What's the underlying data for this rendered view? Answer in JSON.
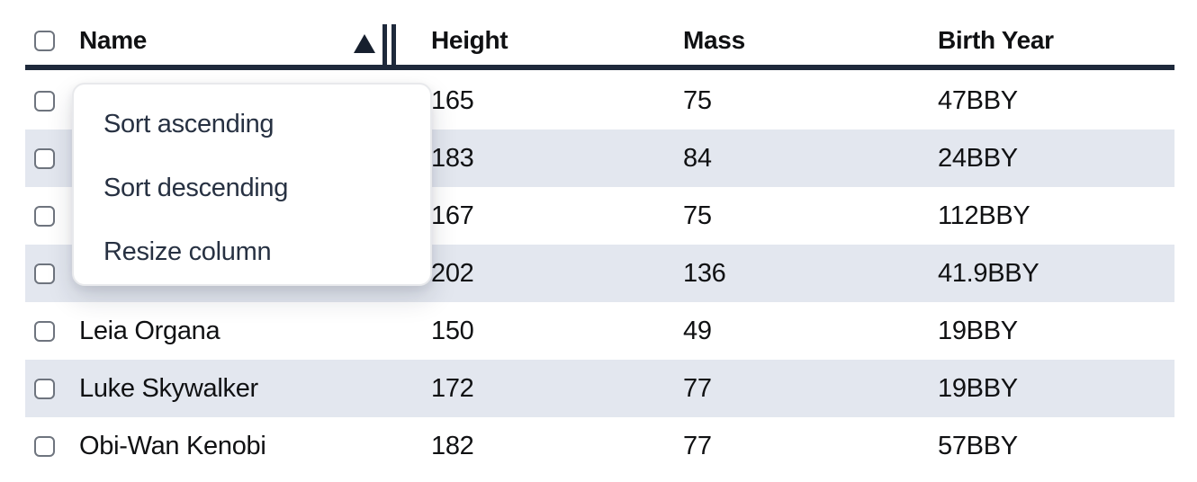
{
  "table": {
    "columns": [
      {
        "label": "Name",
        "sort_state": "ascending",
        "has_resize_handle": true
      },
      {
        "label": "Height"
      },
      {
        "label": "Mass"
      },
      {
        "label": "Birth Year"
      }
    ],
    "rows": [
      {
        "name": "",
        "height": "165",
        "mass": "75",
        "birth_year": "47BBY",
        "note_name_obscured_by_menu": true
      },
      {
        "name": "",
        "height": "183",
        "mass": "84",
        "birth_year": "24BBY",
        "note_name_obscured_by_menu": true
      },
      {
        "name": "",
        "height": "167",
        "mass": "75",
        "birth_year": "112BBY",
        "note_name_obscured_by_menu": true
      },
      {
        "name": "",
        "height": "202",
        "mass": "136",
        "birth_year": "41.9BBY",
        "note_name_obscured_by_menu": true
      },
      {
        "name": "Leia Organa",
        "height": "150",
        "mass": "49",
        "birth_year": "19BBY"
      },
      {
        "name": "Luke Skywalker",
        "height": "172",
        "mass": "77",
        "birth_year": "19BBY"
      },
      {
        "name": "Obi-Wan Kenobi",
        "height": "182",
        "mass": "77",
        "birth_year": "57BBY"
      }
    ],
    "checkboxes_checked": false
  },
  "context_menu": {
    "items": [
      {
        "label": "Sort ascending"
      },
      {
        "label": "Sort descending"
      },
      {
        "label": "Resize column"
      }
    ]
  },
  "icons": {
    "sort_ascending": "triangle-up",
    "column_resize": "double-vertical-bars"
  },
  "colors": {
    "header_border": "#1e293b",
    "row_stripe": "#e3e7ef",
    "text": "#101113",
    "menu_text": "#273142",
    "checkbox_border": "#6e747e",
    "menu_background": "#ffffff"
  }
}
